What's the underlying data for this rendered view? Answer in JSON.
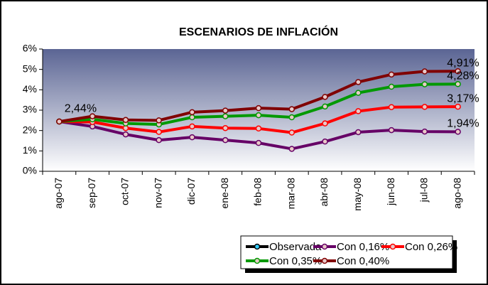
{
  "chart_data": {
    "type": "line",
    "title": "ESCENARIOS DE INFLACIÓN",
    "categories": [
      "ago-07",
      "sep-07",
      "oct-07",
      "nov-07",
      "dic-07",
      "ene-08",
      "feb-08",
      "mar-08",
      "abr-08",
      "may-08",
      "jun-08",
      "jul-08",
      "ago-08"
    ],
    "ylim": [
      0,
      6
    ],
    "yticks": [
      {
        "value": 0,
        "label": "0%"
      },
      {
        "value": 1,
        "label": "1%"
      },
      {
        "value": 2,
        "label": "2%"
      },
      {
        "value": 3,
        "label": "3%"
      },
      {
        "value": 4,
        "label": "4%"
      },
      {
        "value": 5,
        "label": "5%"
      },
      {
        "value": 6,
        "label": "6%"
      }
    ],
    "series": [
      {
        "name": "Observada",
        "color": "#000000",
        "marker_color": "#33ccff",
        "values": [
          2.44,
          null,
          null,
          null,
          null,
          null,
          null,
          null,
          null,
          null,
          null,
          null,
          null
        ],
        "value_labels": [
          "2,44%",
          null,
          null,
          null,
          null,
          null,
          null,
          null,
          null,
          null,
          null,
          null,
          null
        ]
      },
      {
        "name": "Con 0,16%",
        "color": "#660066",
        "values": [
          2.44,
          2.2,
          1.81,
          1.53,
          1.67,
          1.53,
          1.39,
          1.1,
          1.46,
          1.92,
          2.02,
          1.95,
          1.94
        ],
        "value_labels": [
          null,
          null,
          null,
          null,
          null,
          null,
          null,
          null,
          null,
          null,
          null,
          null,
          "1,94%"
        ]
      },
      {
        "name": "Con 0,26%",
        "color": "#ff0000",
        "values": [
          2.44,
          2.42,
          2.12,
          1.93,
          2.2,
          2.12,
          2.1,
          1.9,
          2.35,
          2.95,
          3.15,
          3.16,
          3.17
        ],
        "value_labels": [
          null,
          null,
          null,
          null,
          null,
          null,
          null,
          null,
          null,
          null,
          null,
          null,
          "3,17%"
        ]
      },
      {
        "name": "Con 0,35%",
        "color": "#009900",
        "values": [
          2.44,
          2.55,
          2.35,
          2.3,
          2.65,
          2.7,
          2.75,
          2.65,
          3.18,
          3.85,
          4.15,
          4.27,
          4.28
        ],
        "value_labels": [
          null,
          null,
          null,
          null,
          null,
          null,
          null,
          null,
          null,
          null,
          null,
          null,
          "4,28%"
        ]
      },
      {
        "name": "Con 0,40%",
        "color": "#800000",
        "values": [
          2.44,
          2.7,
          2.52,
          2.5,
          2.9,
          2.98,
          3.1,
          3.05,
          3.65,
          4.38,
          4.75,
          4.9,
          4.91
        ],
        "value_labels": [
          null,
          null,
          null,
          null,
          null,
          null,
          null,
          null,
          null,
          null,
          null,
          null,
          "4,91%"
        ]
      }
    ],
    "legend": "bottom"
  }
}
